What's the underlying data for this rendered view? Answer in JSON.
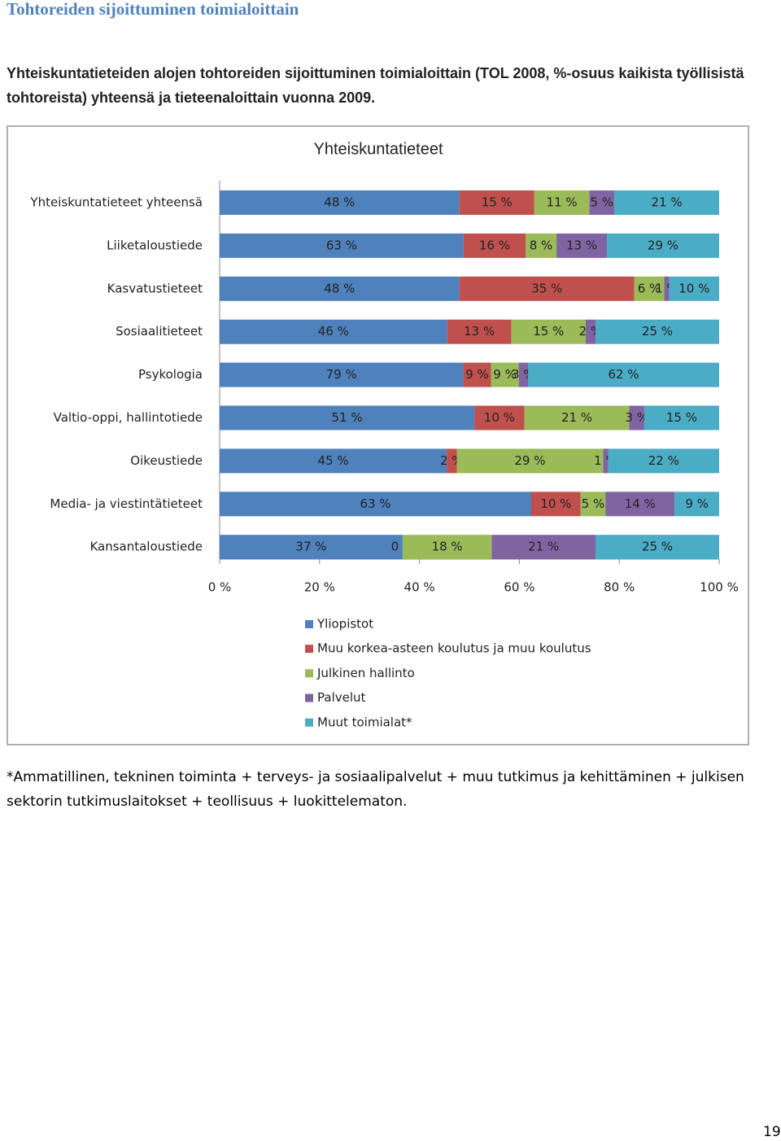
{
  "header": {
    "title": "Tohtoreiden sijoittuminen toimialoittain",
    "subtitle": "Yhteiskuntatieteiden alojen tohtoreiden sijoittuminen toimialoittain (TOL 2008, %-osuus kaikista työllisistä tohtoreista) yhteensä ja tieteenaloittain vuonna 2009."
  },
  "chart_data": {
    "type": "bar",
    "orientation": "horizontal",
    "stacking": "percent",
    "title": "Yhteiskuntatieteet",
    "categories": [
      "Yhteiskuntatieteet yhteensä",
      "Liiketaloustiede",
      "Kasvatustieteet",
      "Sosiaalitieteet",
      "Psykologia",
      "Valtio-oppi, hallintotiede",
      "Oikeustiede",
      "Media- ja viestintätieteet",
      "Kansantaloustiede"
    ],
    "series": [
      {
        "name": "Yliopistot",
        "color": "#4f81bd",
        "values": [
          48,
          63,
          48,
          46,
          79,
          51,
          45,
          63,
          37
        ],
        "value_labels": [
          "48 %",
          "63 %",
          "48 %",
          "46 %",
          "79 %",
          "51 %",
          "45 %",
          "63 %",
          "37 %"
        ]
      },
      {
        "name": "Muu korkea-asteen koulutus ja muu koulutus",
        "color": "#c0504d",
        "values": [
          15,
          16,
          35,
          13,
          9,
          10,
          2,
          10,
          0
        ],
        "value_labels": [
          "15 %",
          "16 %",
          "35 %",
          "13 %",
          "9 %",
          "10 %",
          "2 %",
          "10 %",
          "0 %"
        ]
      },
      {
        "name": "Julkinen hallinto",
        "color": "#9bbb59",
        "values": [
          11,
          8,
          6,
          15,
          9,
          21,
          29,
          5,
          18
        ],
        "value_labels": [
          "11 %",
          "8 %",
          "6 %",
          "15 %",
          "9 %",
          "21 %",
          "29 %",
          "5 %",
          "18 %"
        ]
      },
      {
        "name": "Palvelut",
        "color": "#8064a2",
        "values": [
          5,
          13,
          1,
          2,
          3,
          3,
          1,
          14,
          21
        ],
        "value_labels": [
          "5 %",
          "13 %",
          "1 %",
          "2 %",
          "3 %",
          "3 %",
          "1 %",
          "14 %",
          "21 %"
        ]
      },
      {
        "name": "Muut toimialat*",
        "color": "#4bacc6",
        "values": [
          21,
          29,
          10,
          25,
          62,
          15,
          22,
          9,
          25
        ],
        "value_labels": [
          "21 %",
          "29 %",
          "10 %",
          "25 %",
          "62 %",
          "15 %",
          "22 %",
          "9 %",
          "25 %"
        ]
      }
    ],
    "xlim": [
      0,
      100
    ],
    "xticks": [
      {
        "value": 0,
        "label": "0 %"
      },
      {
        "value": 20,
        "label": "20 %"
      },
      {
        "value": 40,
        "label": "40 %"
      },
      {
        "value": 60,
        "label": "60 %"
      },
      {
        "value": 80,
        "label": "80 %"
      },
      {
        "value": 100,
        "label": "100 %"
      }
    ],
    "legend": "bottom"
  },
  "footnote": "*Ammatillinen, tekninen toiminta + terveys- ja sosiaalipalvelut + muu tutkimus ja kehittäminen + julkisen sektorin tutkimuslaitokset + teollisuus + luokittelematon.",
  "page_number": "19"
}
